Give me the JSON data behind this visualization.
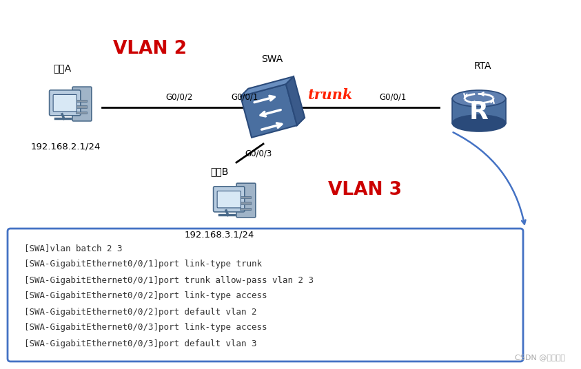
{
  "bg_color": "#ffffff",
  "host_a_label": "主机A",
  "host_a_ip": "192.168.2.1/24",
  "host_b_label": "主机B",
  "host_b_ip": "192.168.3.1/24",
  "swa_label": "SWA",
  "rta_label": "RTA",
  "vlan2_label": "VLAN 2",
  "vlan3_label": "VLAN 3",
  "trunk_label": "trunk",
  "port_g002": "G0/0/2",
  "port_g001_swa": "G0/0/1",
  "port_g001_rta": "G0/0/1",
  "port_g003": "G0/0/3",
  "code_lines": [
    "[SWA]vlan batch 2 3",
    "[SWA-GigabitEthernet0/0/1]port link-type trunk",
    "[SWA-GigabitEthernet0/0/1]port trunk allow-pass vlan 2 3",
    "[SWA-GigabitEthernet0/0/2]port link-type access",
    "[SWA-GigabitEthernet0/0/2]port default vlan 2",
    "[SWA-GigabitEthernet0/0/3]port link-type access",
    "[SWA-GigabitEthernet0/0/3]port default vlan 3"
  ],
  "csdn_watermark": "CSDN @公山熊猫",
  "color_vlan": "#cc0000",
  "color_trunk": "#ff2200",
  "color_arrow": "#4472c4",
  "color_code_border": "#4472c4",
  "color_code_bg": "#ffffff",
  "color_code_text": "#333333",
  "color_label": "#000000",
  "color_watermark": "#aaaaaa",
  "sw_color_front": "#4a6fa0",
  "sw_color_top": "#6a8fc0",
  "sw_color_right": "#3a5a8a",
  "sw_color_edge": "#2a4a7a",
  "rt_color_body": "#4a6fa0",
  "rt_color_top": "#6080b0",
  "rt_color_dark": "#2a4a7a",
  "pc_color_monitor": "#b8cce0",
  "pc_color_tower": "#a0b4c8",
  "pc_color_screen": "#d8e8f5",
  "pc_color_edge": "#4a6a8a"
}
